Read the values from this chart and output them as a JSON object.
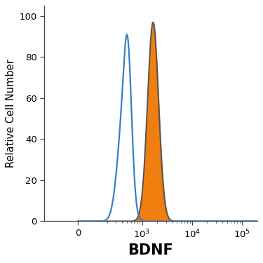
{
  "title": "",
  "xlabel": "BDNF",
  "ylabel": "Relative Cell Number",
  "ylim": [
    0,
    105
  ],
  "yticks": [
    0,
    20,
    40,
    60,
    80,
    100
  ],
  "blue_curve": {
    "log_mean1": 2.63,
    "log_std1": 0.12,
    "peak1": 86,
    "log_mean2": 2.72,
    "log_std2": 0.075,
    "peak2": 91,
    "color": "#3a7dc9",
    "linewidth": 1.6
  },
  "orange_curve": {
    "log_mean": 3.22,
    "log_std": 0.11,
    "peak": 97,
    "fill_color": "#f07f10",
    "outline_color": "#555555",
    "linewidth": 1.4
  },
  "linthresh": 100,
  "linscale": 0.25,
  "xlim_left": -250,
  "xlim_right": 200000,
  "background_color": "#ffffff",
  "spine_color": "#444444",
  "tick_color": "#444444",
  "xlabel_fontsize": 15,
  "ylabel_fontsize": 10.5,
  "tick_fontsize": 9.5,
  "xlabel_fontweight": "bold"
}
